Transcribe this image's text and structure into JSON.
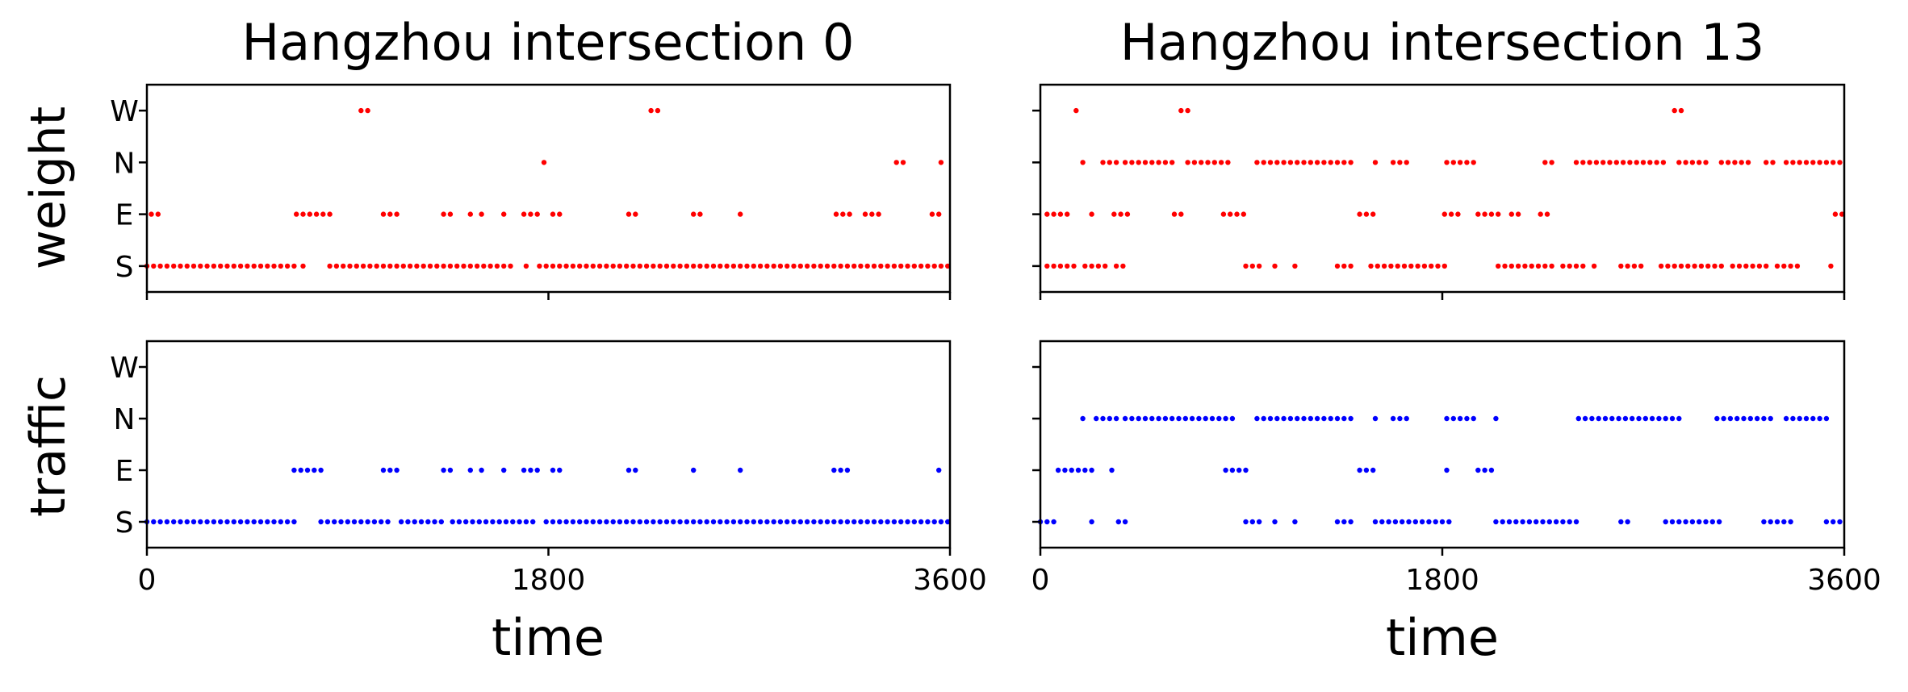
{
  "figure": {
    "titles": [
      "Hangzhou intersection 0",
      "Hangzhou intersection 13"
    ],
    "row_labels": [
      "weight",
      "traffic"
    ],
    "xlabel": "time"
  },
  "chart_data": {
    "type": "scatter",
    "xlim": [
      0,
      3600
    ],
    "x_ticks": [
      0,
      1800,
      3600
    ],
    "y_categories": [
      "S",
      "E",
      "N",
      "W"
    ],
    "grid": false,
    "legend": "none",
    "colors": {
      "weight": "#ff0000",
      "traffic": "#0000ff"
    },
    "panels": [
      {
        "title": "Hangzhou intersection 0",
        "ylabel": "weight",
        "xlabel": "",
        "color": "#ff0000",
        "segments": [
          {
            "y": "S",
            "x0": 0,
            "x1": 680,
            "step": 30
          },
          {
            "y": "S",
            "x0": 700,
            "x1": 705,
            "step": 30
          },
          {
            "y": "S",
            "x0": 820,
            "x1": 1630,
            "step": 30
          },
          {
            "y": "S",
            "x0": 1700,
            "x1": 1720,
            "step": 30
          },
          {
            "y": "S",
            "x0": 1760,
            "x1": 3600,
            "step": 30
          },
          {
            "y": "E",
            "x0": 20,
            "x1": 60,
            "step": 30
          },
          {
            "y": "E",
            "x0": 670,
            "x1": 820,
            "step": 30
          },
          {
            "y": "E",
            "x0": 1060,
            "x1": 1140,
            "step": 30
          },
          {
            "y": "E",
            "x0": 1330,
            "x1": 1380,
            "step": 30
          },
          {
            "y": "E",
            "x0": 1450,
            "x1": 1460,
            "step": 30
          },
          {
            "y": "E",
            "x0": 1500,
            "x1": 1520,
            "step": 30
          },
          {
            "y": "E",
            "x0": 1600,
            "x1": 1620,
            "step": 30
          },
          {
            "y": "E",
            "x0": 1690,
            "x1": 1760,
            "step": 30
          },
          {
            "y": "E",
            "x0": 1820,
            "x1": 1870,
            "step": 30
          },
          {
            "y": "E",
            "x0": 2160,
            "x1": 2200,
            "step": 30
          },
          {
            "y": "E",
            "x0": 2450,
            "x1": 2500,
            "step": 30
          },
          {
            "y": "E",
            "x0": 2660,
            "x1": 2670,
            "step": 30
          },
          {
            "y": "E",
            "x0": 3090,
            "x1": 3150,
            "step": 30
          },
          {
            "y": "E",
            "x0": 3220,
            "x1": 3280,
            "step": 30
          },
          {
            "y": "E",
            "x0": 3520,
            "x1": 3560,
            "step": 30
          },
          {
            "y": "N",
            "x0": 1780,
            "x1": 1800,
            "step": 30
          },
          {
            "y": "N",
            "x0": 3360,
            "x1": 3400,
            "step": 30
          },
          {
            "y": "N",
            "x0": 3560,
            "x1": 3570,
            "step": 30
          },
          {
            "y": "W",
            "x0": 960,
            "x1": 990,
            "step": 30
          },
          {
            "y": "W",
            "x0": 2260,
            "x1": 2290,
            "step": 30
          }
        ]
      },
      {
        "title": "Hangzhou intersection 13",
        "ylabel": "",
        "xlabel": "",
        "color": "#ff0000",
        "segments": [
          {
            "y": "S",
            "x0": 30,
            "x1": 150,
            "step": 30
          },
          {
            "y": "S",
            "x0": 200,
            "x1": 300,
            "step": 30
          },
          {
            "y": "S",
            "x0": 340,
            "x1": 370,
            "step": 30
          },
          {
            "y": "S",
            "x0": 920,
            "x1": 1000,
            "step": 30
          },
          {
            "y": "S",
            "x0": 1050,
            "x1": 1060,
            "step": 30
          },
          {
            "y": "S",
            "x0": 1140,
            "x1": 1150,
            "step": 30
          },
          {
            "y": "S",
            "x0": 1330,
            "x1": 1400,
            "step": 30
          },
          {
            "y": "S",
            "x0": 1480,
            "x1": 1820,
            "step": 30
          },
          {
            "y": "S",
            "x0": 2050,
            "x1": 2300,
            "step": 30
          },
          {
            "y": "S",
            "x0": 2340,
            "x1": 2450,
            "step": 30
          },
          {
            "y": "S",
            "x0": 2480,
            "x1": 2490,
            "step": 30
          },
          {
            "y": "S",
            "x0": 2600,
            "x1": 2700,
            "step": 30
          },
          {
            "y": "S",
            "x0": 2780,
            "x1": 3050,
            "step": 30
          },
          {
            "y": "S",
            "x0": 3100,
            "x1": 3250,
            "step": 30
          },
          {
            "y": "S",
            "x0": 3300,
            "x1": 3400,
            "step": 30
          },
          {
            "y": "S",
            "x0": 3540,
            "x1": 3560,
            "step": 30
          },
          {
            "y": "E",
            "x0": 30,
            "x1": 120,
            "step": 30
          },
          {
            "y": "E",
            "x0": 230,
            "x1": 250,
            "step": 30
          },
          {
            "y": "E",
            "x0": 330,
            "x1": 400,
            "step": 30
          },
          {
            "y": "E",
            "x0": 600,
            "x1": 640,
            "step": 30
          },
          {
            "y": "E",
            "x0": 820,
            "x1": 920,
            "step": 30
          },
          {
            "y": "E",
            "x0": 1430,
            "x1": 1500,
            "step": 30
          },
          {
            "y": "E",
            "x0": 1810,
            "x1": 1880,
            "step": 30
          },
          {
            "y": "E",
            "x0": 1960,
            "x1": 2050,
            "step": 30
          },
          {
            "y": "E",
            "x0": 2110,
            "x1": 2160,
            "step": 30
          },
          {
            "y": "E",
            "x0": 2240,
            "x1": 2270,
            "step": 30
          },
          {
            "y": "E",
            "x0": 3560,
            "x1": 3600,
            "step": 30
          },
          {
            "y": "N",
            "x0": 190,
            "x1": 200,
            "step": 30
          },
          {
            "y": "N",
            "x0": 280,
            "x1": 340,
            "step": 30
          },
          {
            "y": "N",
            "x0": 380,
            "x1": 600,
            "step": 30
          },
          {
            "y": "N",
            "x0": 660,
            "x1": 840,
            "step": 30
          },
          {
            "y": "N",
            "x0": 970,
            "x1": 1400,
            "step": 30
          },
          {
            "y": "N",
            "x0": 1500,
            "x1": 1520,
            "step": 30
          },
          {
            "y": "N",
            "x0": 1580,
            "x1": 1660,
            "step": 30
          },
          {
            "y": "N",
            "x0": 1820,
            "x1": 1960,
            "step": 30
          },
          {
            "y": "N",
            "x0": 2260,
            "x1": 2290,
            "step": 30
          },
          {
            "y": "N",
            "x0": 2400,
            "x1": 2800,
            "step": 30
          },
          {
            "y": "N",
            "x0": 2860,
            "x1": 3000,
            "step": 30
          },
          {
            "y": "N",
            "x0": 3050,
            "x1": 3180,
            "step": 30
          },
          {
            "y": "N",
            "x0": 3250,
            "x1": 3280,
            "step": 30
          },
          {
            "y": "N",
            "x0": 3340,
            "x1": 3600,
            "step": 30
          },
          {
            "y": "W",
            "x0": 160,
            "x1": 180,
            "step": 30
          },
          {
            "y": "W",
            "x0": 630,
            "x1": 660,
            "step": 30
          },
          {
            "y": "W",
            "x0": 2840,
            "x1": 2870,
            "step": 30
          }
        ]
      },
      {
        "title": "",
        "ylabel": "traffic",
        "xlabel": "time",
        "color": "#0000ff",
        "segments": [
          {
            "y": "S",
            "x0": 0,
            "x1": 680,
            "step": 30
          },
          {
            "y": "S",
            "x0": 780,
            "x1": 1080,
            "step": 30
          },
          {
            "y": "S",
            "x0": 1140,
            "x1": 1330,
            "step": 30
          },
          {
            "y": "S",
            "x0": 1370,
            "x1": 1750,
            "step": 30
          },
          {
            "y": "S",
            "x0": 1790,
            "x1": 3600,
            "step": 30
          },
          {
            "y": "E",
            "x0": 660,
            "x1": 780,
            "step": 30
          },
          {
            "y": "E",
            "x0": 1060,
            "x1": 1140,
            "step": 30
          },
          {
            "y": "E",
            "x0": 1330,
            "x1": 1380,
            "step": 30
          },
          {
            "y": "E",
            "x0": 1450,
            "x1": 1460,
            "step": 30
          },
          {
            "y": "E",
            "x0": 1500,
            "x1": 1520,
            "step": 30
          },
          {
            "y": "E",
            "x0": 1600,
            "x1": 1620,
            "step": 30
          },
          {
            "y": "E",
            "x0": 1690,
            "x1": 1760,
            "step": 30
          },
          {
            "y": "E",
            "x0": 1820,
            "x1": 1870,
            "step": 30
          },
          {
            "y": "E",
            "x0": 2160,
            "x1": 2200,
            "step": 30
          },
          {
            "y": "E",
            "x0": 2450,
            "x1": 2460,
            "step": 30
          },
          {
            "y": "E",
            "x0": 2660,
            "x1": 2670,
            "step": 30
          },
          {
            "y": "E",
            "x0": 3080,
            "x1": 3140,
            "step": 30
          },
          {
            "y": "E",
            "x0": 3550,
            "x1": 3570,
            "step": 30
          }
        ]
      },
      {
        "title": "",
        "ylabel": "",
        "xlabel": "time",
        "color": "#0000ff",
        "segments": [
          {
            "y": "S",
            "x0": 0,
            "x1": 70,
            "step": 30
          },
          {
            "y": "S",
            "x0": 230,
            "x1": 250,
            "step": 30
          },
          {
            "y": "S",
            "x0": 350,
            "x1": 400,
            "step": 30
          },
          {
            "y": "S",
            "x0": 920,
            "x1": 1000,
            "step": 30
          },
          {
            "y": "S",
            "x0": 1050,
            "x1": 1060,
            "step": 30
          },
          {
            "y": "S",
            "x0": 1140,
            "x1": 1150,
            "step": 30
          },
          {
            "y": "S",
            "x0": 1330,
            "x1": 1400,
            "step": 30
          },
          {
            "y": "S",
            "x0": 1500,
            "x1": 1830,
            "step": 30
          },
          {
            "y": "S",
            "x0": 2040,
            "x1": 2400,
            "step": 30
          },
          {
            "y": "S",
            "x0": 2600,
            "x1": 2650,
            "step": 30
          },
          {
            "y": "S",
            "x0": 2800,
            "x1": 2950,
            "step": 30
          },
          {
            "y": "S",
            "x0": 2980,
            "x1": 3050,
            "step": 30
          },
          {
            "y": "S",
            "x0": 3240,
            "x1": 3380,
            "step": 30
          },
          {
            "y": "S",
            "x0": 3520,
            "x1": 3600,
            "step": 30
          },
          {
            "y": "E",
            "x0": 80,
            "x1": 250,
            "step": 30
          },
          {
            "y": "E",
            "x0": 320,
            "x1": 330,
            "step": 30
          },
          {
            "y": "E",
            "x0": 830,
            "x1": 920,
            "step": 30
          },
          {
            "y": "E",
            "x0": 1430,
            "x1": 1500,
            "step": 30
          },
          {
            "y": "E",
            "x0": 1820,
            "x1": 1830,
            "step": 30
          },
          {
            "y": "E",
            "x0": 1960,
            "x1": 2040,
            "step": 30
          },
          {
            "y": "N",
            "x0": 190,
            "x1": 200,
            "step": 30
          },
          {
            "y": "N",
            "x0": 250,
            "x1": 340,
            "step": 30
          },
          {
            "y": "N",
            "x0": 380,
            "x1": 860,
            "step": 30
          },
          {
            "y": "N",
            "x0": 970,
            "x1": 1400,
            "step": 30
          },
          {
            "y": "N",
            "x0": 1500,
            "x1": 1520,
            "step": 30
          },
          {
            "y": "N",
            "x0": 1580,
            "x1": 1640,
            "step": 30
          },
          {
            "y": "N",
            "x0": 1820,
            "x1": 1960,
            "step": 30
          },
          {
            "y": "N",
            "x0": 2040,
            "x1": 2050,
            "step": 30
          },
          {
            "y": "N",
            "x0": 2410,
            "x1": 2880,
            "step": 30
          },
          {
            "y": "N",
            "x0": 3030,
            "x1": 3280,
            "step": 30
          },
          {
            "y": "N",
            "x0": 3340,
            "x1": 3540,
            "step": 30
          }
        ]
      }
    ]
  }
}
